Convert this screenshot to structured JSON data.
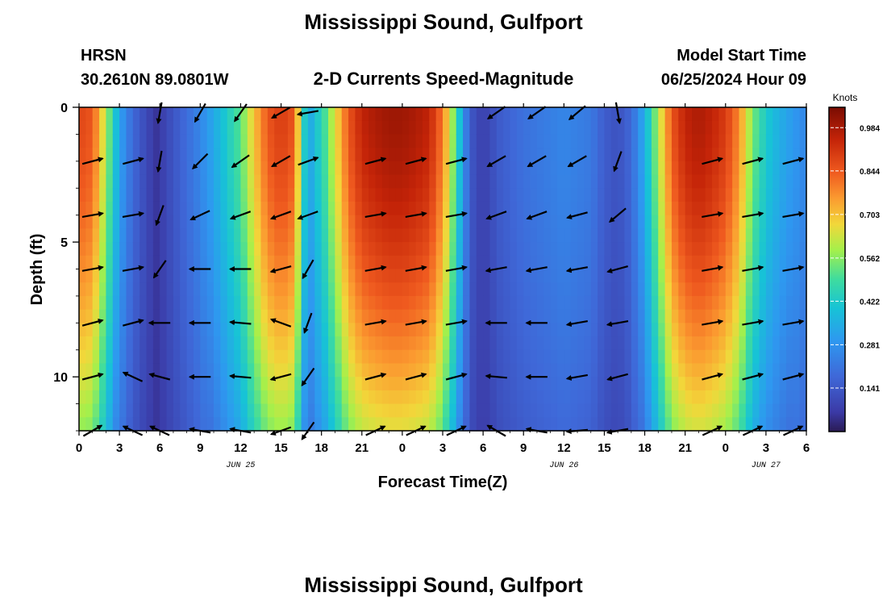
{
  "header": {
    "title": "Mississippi Sound, Gulfport",
    "model": "HRSN",
    "location": "30.2610N  89.0801W",
    "subtitle": "2-D Currents Speed-Magnitude",
    "start_label": "Model Start Time",
    "start_value": "06/25/2024 Hour 09"
  },
  "footer": {
    "title": "Mississippi Sound, Gulfport"
  },
  "chart_data": {
    "type": "heatmap",
    "title": "2-D Currents Speed-Magnitude",
    "xlabel": "Forecast Time(Z)",
    "ylabel": "Depth (ft)",
    "x_range_hours": [
      0,
      54
    ],
    "y_range_ft": [
      0,
      12
    ],
    "x_tick_hours": [
      0,
      3,
      6,
      9,
      12,
      15,
      18,
      21,
      24,
      27,
      30,
      33,
      36,
      39,
      42,
      45,
      48,
      51,
      54
    ],
    "x_tick_labels": [
      "0",
      "3",
      "6",
      "9",
      "12",
      "15",
      "18",
      "21",
      "0",
      "3",
      "6",
      "9",
      "12",
      "15",
      "18",
      "21",
      "0",
      "3",
      "6"
    ],
    "y_ticks": [
      0,
      5,
      10
    ],
    "y_tick_labels": [
      "0",
      "5",
      "10"
    ],
    "date_labels": [
      {
        "label": "JUN 25",
        "hour": 12
      },
      {
        "label": "JUN 26",
        "hour": 36
      },
      {
        "label": "JUN 27",
        "hour": 51
      }
    ],
    "colorbar": {
      "label": "Knots",
      "min": 0.0,
      "max": 1.05,
      "ticks": [
        0.141,
        0.281,
        0.422,
        0.562,
        0.703,
        0.844,
        0.984
      ],
      "tick_labels": [
        "0.141",
        "0.281",
        "0.422",
        "0.562",
        "0.703",
        "0.844",
        "0.984"
      ]
    },
    "speed_profile_hours": [
      0,
      1,
      2,
      3,
      4,
      5,
      5.8,
      6.5,
      7.5,
      9,
      10.5,
      12,
      13,
      14,
      15,
      16,
      16.5,
      17,
      17.5,
      18,
      19,
      20,
      21,
      22,
      23,
      24,
      25,
      26,
      27,
      28,
      28.5,
      29,
      29.5,
      30,
      30.5,
      31,
      33,
      36,
      38,
      39,
      40,
      41,
      42,
      43,
      44,
      45,
      46,
      47,
      48,
      49,
      50,
      51,
      52,
      53,
      54
    ],
    "speed_profile_surface_knots": [
      0.88,
      0.85,
      0.6,
      0.32,
      0.18,
      0.1,
      0.05,
      0.1,
      0.16,
      0.25,
      0.38,
      0.52,
      0.7,
      0.85,
      0.9,
      0.85,
      0.55,
      0.3,
      0.4,
      0.45,
      0.65,
      0.85,
      0.95,
      0.98,
      1.0,
      1.0,
      0.98,
      0.95,
      0.8,
      0.5,
      0.3,
      0.15,
      0.1,
      0.08,
      0.1,
      0.14,
      0.2,
      0.25,
      0.22,
      0.15,
      0.12,
      0.18,
      0.35,
      0.6,
      0.85,
      0.95,
      0.98,
      0.95,
      0.9,
      0.78,
      0.55,
      0.42,
      0.35,
      0.3,
      0.25
    ],
    "vector_columns_hours": [
      1,
      4,
      6,
      9,
      12,
      15,
      17,
      22,
      25,
      28,
      31,
      34,
      37,
      40,
      42,
      47,
      50,
      53
    ],
    "vector_rows_ft": [
      0.2,
      2,
      4,
      6,
      8,
      10,
      12
    ],
    "vector_directions_deg": [
      [
        null,
        null,
        260,
        240,
        235,
        210,
        190,
        null,
        null,
        null,
        215,
        215,
        220,
        280,
        null,
        null,
        null,
        null
      ],
      [
        15,
        15,
        260,
        225,
        215,
        210,
        20,
        15,
        15,
        15,
        210,
        210,
        210,
        250,
        null,
        15,
        15,
        15
      ],
      [
        10,
        10,
        250,
        205,
        200,
        200,
        200,
        10,
        10,
        10,
        200,
        200,
        195,
        220,
        null,
        10,
        10,
        10
      ],
      [
        10,
        10,
        235,
        180,
        180,
        195,
        240,
        10,
        10,
        10,
        190,
        190,
        190,
        195,
        null,
        10,
        10,
        10
      ],
      [
        15,
        15,
        180,
        180,
        175,
        160,
        250,
        10,
        10,
        10,
        180,
        180,
        190,
        190,
        null,
        10,
        10,
        10
      ],
      [
        15,
        155,
        165,
        180,
        175,
        195,
        235,
        15,
        15,
        15,
        175,
        180,
        190,
        195,
        null,
        15,
        15,
        15
      ],
      [
        30,
        155,
        155,
        170,
        170,
        200,
        235,
        25,
        25,
        25,
        150,
        170,
        185,
        190,
        null,
        25,
        25,
        25
      ]
    ]
  }
}
